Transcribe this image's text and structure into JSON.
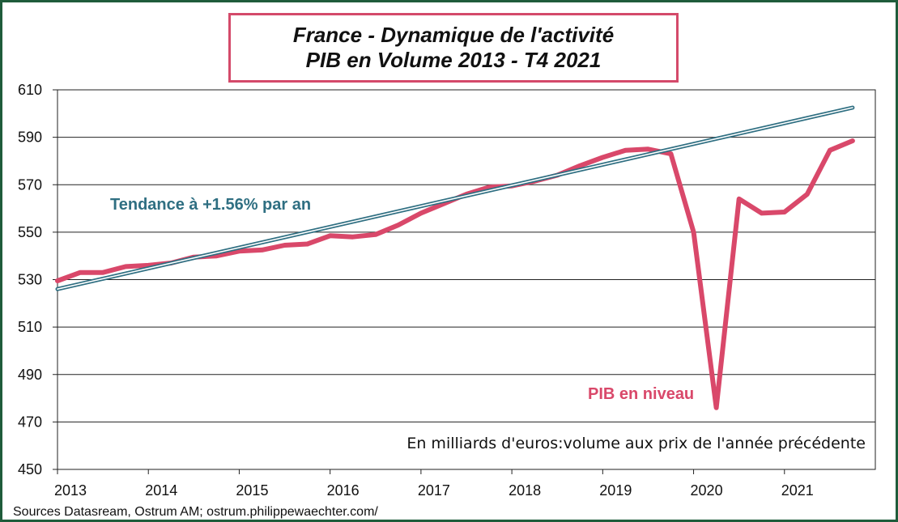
{
  "chart_data": {
    "type": "line",
    "title": "France - Dynamique de l'activité",
    "subtitle": "PIB en Volume 2013 - T4 2021",
    "ylim": [
      450,
      610
    ],
    "yticks": [
      450,
      470,
      490,
      510,
      530,
      550,
      570,
      590,
      610
    ],
    "xlim": [
      2013,
      2022
    ],
    "xticks": [
      2013,
      2014,
      2015,
      2016,
      2017,
      2018,
      2019,
      2020,
      2021
    ],
    "grid": "horizontal",
    "series": [
      {
        "name": "PIB en niveau",
        "color": "#d9486a",
        "x": [
          2013.0,
          2013.25,
          2013.5,
          2013.75,
          2014.0,
          2014.25,
          2014.5,
          2014.75,
          2015.0,
          2015.25,
          2015.5,
          2015.75,
          2016.0,
          2016.25,
          2016.5,
          2016.75,
          2017.0,
          2017.25,
          2017.5,
          2017.75,
          2018.0,
          2018.25,
          2018.5,
          2018.75,
          2019.0,
          2019.25,
          2019.5,
          2019.75,
          2020.0,
          2020.25,
          2020.5,
          2020.75,
          2021.0,
          2021.25,
          2021.5,
          2021.75
        ],
        "values": [
          529.5,
          533.0,
          533.0,
          535.5,
          536.0,
          537.0,
          539.5,
          540.0,
          542.0,
          542.5,
          544.5,
          545.0,
          548.5,
          548.0,
          549.0,
          553.0,
          558.0,
          562.0,
          566.0,
          569.0,
          569.5,
          571.5,
          574.0,
          578.0,
          581.5,
          584.5,
          585.0,
          583.0,
          550.0,
          476.0,
          564.0,
          558.0,
          558.5,
          566.0,
          584.5,
          588.5
        ]
      },
      {
        "name": "Tendance à +1.56% par an",
        "color": "#2f6f82",
        "style": "double",
        "x": [
          2013.0,
          2021.75
        ],
        "values": [
          526.0,
          602.5
        ]
      }
    ]
  },
  "annotations": {
    "trend_label": "Tendance à +1.56% par an",
    "gdp_label": "PIB en niveau",
    "unit_note": "En milliards d'euros:volume aux prix de l'année précédente"
  },
  "source": "Sources Datasream, Ostrum AM; ostrum.philippewaechter.com/"
}
